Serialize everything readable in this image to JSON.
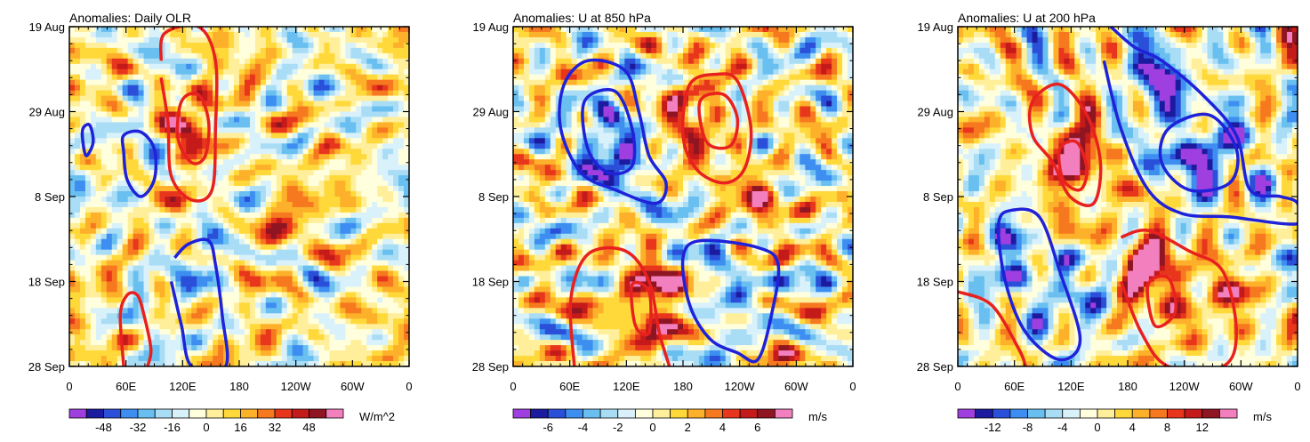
{
  "chart_data": [
    {
      "type": "heatmap",
      "title": "Anomalies: Daily OLR",
      "x_ticks": [
        "0",
        "60E",
        "120E",
        "180",
        "120W",
        "60W",
        "0"
      ],
      "y_ticks": [
        "19 Aug",
        "29 Aug",
        "8 Sep",
        "18 Sep",
        "28 Sep"
      ],
      "x_range": [
        0,
        360
      ],
      "y_range": [
        "19 Aug",
        "28 Sep"
      ],
      "colorbar": {
        "labels": [
          "-48",
          "-32",
          "-16",
          "0",
          "16",
          "32",
          "48"
        ],
        "units": "W/m^2"
      },
      "contours": {
        "positive_color": "#e8211f",
        "negative_color": "#1f22d9"
      }
    },
    {
      "type": "heatmap",
      "title": "Anomalies: U at 850 hPa",
      "x_ticks": [
        "0",
        "60E",
        "120E",
        "180",
        "120W",
        "60W",
        "0"
      ],
      "y_ticks": [
        "19 Aug",
        "29 Aug",
        "8 Sep",
        "18 Sep",
        "28 Sep"
      ],
      "x_range": [
        0,
        360
      ],
      "y_range": [
        "19 Aug",
        "28 Sep"
      ],
      "colorbar": {
        "labels": [
          "-6",
          "-4",
          "-2",
          "0",
          "2",
          "4",
          "6"
        ],
        "units": "m/s"
      },
      "contours": {
        "positive_color": "#e8211f",
        "negative_color": "#1f22d9"
      }
    },
    {
      "type": "heatmap",
      "title": "Anomalies: U at 200 hPa",
      "x_ticks": [
        "0",
        "60E",
        "120E",
        "180",
        "120W",
        "60W",
        "0"
      ],
      "y_ticks": [
        "19 Aug",
        "29 Aug",
        "8 Sep",
        "18 Sep",
        "28 Sep"
      ],
      "x_range": [
        0,
        360
      ],
      "y_range": [
        "19 Aug",
        "28 Sep"
      ],
      "colorbar": {
        "labels": [
          "-12",
          "-8",
          "-4",
          "0",
          "4",
          "8",
          "12"
        ],
        "units": "m/s"
      },
      "contours": {
        "positive_color": "#e8211f",
        "negative_color": "#1f22d9"
      }
    }
  ],
  "palette": [
    "#9f3fe0",
    "#1c1a9e",
    "#2a4fd8",
    "#3d8ef0",
    "#69bff0",
    "#a9ddf5",
    "#d9f1fb",
    "#ffffdd",
    "#ffef9a",
    "#ffd83a",
    "#fdb02a",
    "#f6781f",
    "#e8361c",
    "#c41a1a",
    "#8f1522",
    "#f27fbe"
  ]
}
